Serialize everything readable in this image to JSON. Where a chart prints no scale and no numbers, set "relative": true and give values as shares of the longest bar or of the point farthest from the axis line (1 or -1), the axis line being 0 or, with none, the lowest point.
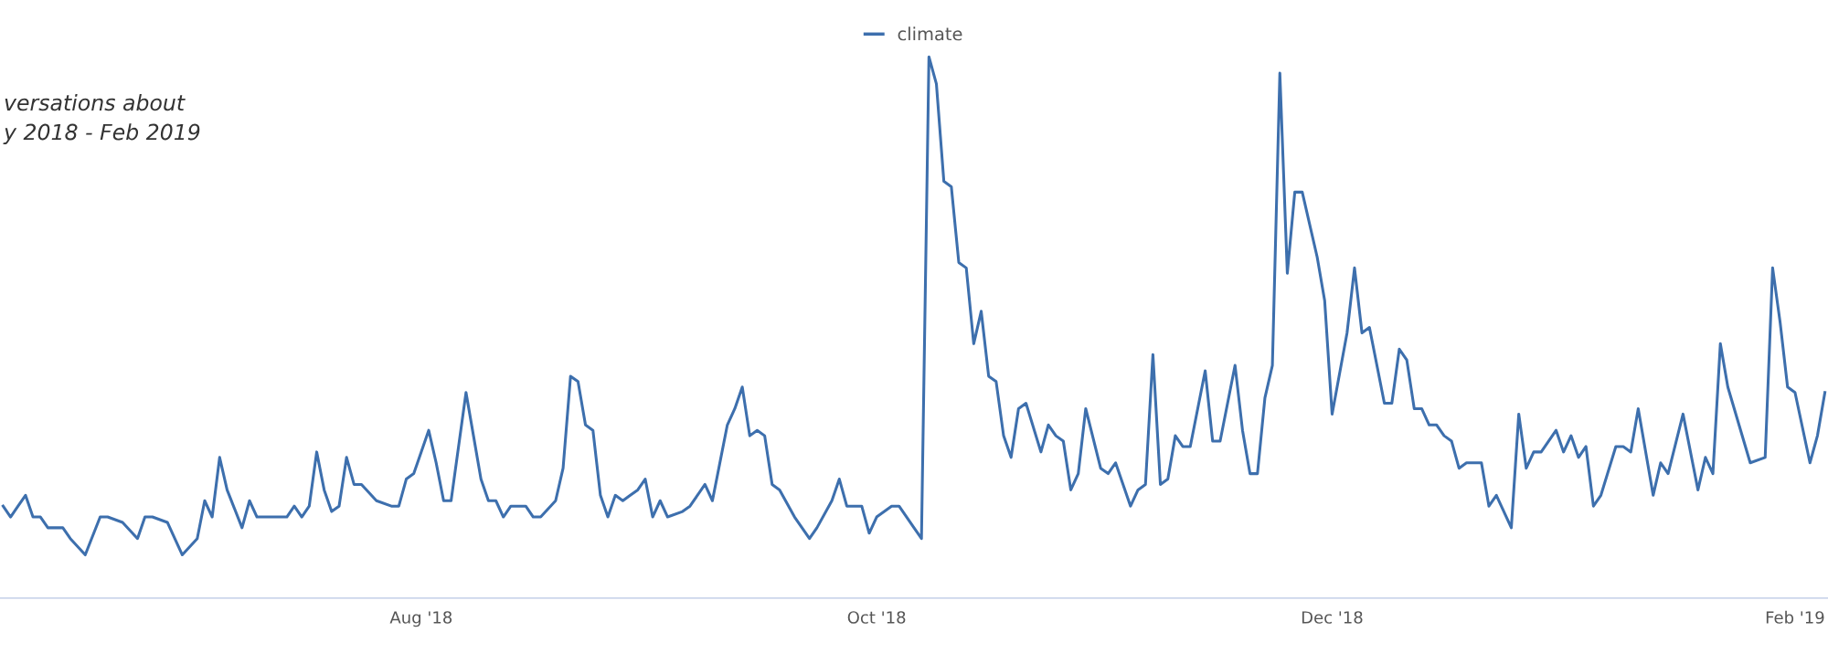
{
  "chart_data": {
    "type": "line",
    "relative": true,
    "legend": "top",
    "grid": false,
    "marker": "none",
    "line_style": "solid",
    "annotations": [
      "versations about",
      "y 2018 - Feb 2019"
    ],
    "xlim": [
      "2018-06-05T14:00",
      "2019-02-05T10:00"
    ],
    "xticks": [
      {
        "value": "2018-08-01",
        "label": "Aug '18"
      },
      {
        "value": "2018-10-01",
        "label": "Oct '18"
      },
      {
        "value": "2018-12-01",
        "label": "Dec '18"
      },
      {
        "value": "2019-02-01",
        "label": "Feb '19"
      }
    ],
    "x": [
      "2018-06-06",
      "2018-06-07",
      "2018-06-08",
      "2018-06-09",
      "2018-06-10",
      "2018-06-11",
      "2018-06-12",
      "2018-06-14",
      "2018-06-15",
      "2018-06-17",
      "2018-06-19",
      "2018-06-20",
      "2018-06-22",
      "2018-06-24",
      "2018-06-25",
      "2018-06-26",
      "2018-06-28",
      "2018-06-30",
      "2018-07-02",
      "2018-07-03",
      "2018-07-04",
      "2018-07-05",
      "2018-07-06",
      "2018-07-08",
      "2018-07-09",
      "2018-07-10",
      "2018-07-12",
      "2018-07-14",
      "2018-07-15",
      "2018-07-16",
      "2018-07-17",
      "2018-07-18",
      "2018-07-19",
      "2018-07-20",
      "2018-07-21",
      "2018-07-22",
      "2018-07-23",
      "2018-07-24",
      "2018-07-26",
      "2018-07-28",
      "2018-07-29",
      "2018-07-30",
      "2018-07-31",
      "2018-08-02",
      "2018-08-03",
      "2018-08-04",
      "2018-08-05",
      "2018-08-07",
      "2018-08-08",
      "2018-08-09",
      "2018-08-10",
      "2018-08-11",
      "2018-08-12",
      "2018-08-13",
      "2018-08-15",
      "2018-08-16",
      "2018-08-17",
      "2018-08-19",
      "2018-08-20",
      "2018-08-21",
      "2018-08-22",
      "2018-08-23",
      "2018-08-24",
      "2018-08-25",
      "2018-08-26",
      "2018-08-27",
      "2018-08-28",
      "2018-08-29",
      "2018-08-30",
      "2018-08-31",
      "2018-09-01",
      "2018-09-02",
      "2018-09-03",
      "2018-09-05",
      "2018-09-06",
      "2018-09-08",
      "2018-09-09",
      "2018-09-11",
      "2018-09-12",
      "2018-09-13",
      "2018-09-14",
      "2018-09-15",
      "2018-09-16",
      "2018-09-17",
      "2018-09-18",
      "2018-09-20",
      "2018-09-22",
      "2018-09-23",
      "2018-09-25",
      "2018-09-26",
      "2018-09-27",
      "2018-09-29",
      "2018-09-30",
      "2018-10-01",
      "2018-10-03",
      "2018-10-04",
      "2018-10-06",
      "2018-10-07",
      "2018-10-08",
      "2018-10-09",
      "2018-10-10",
      "2018-10-11",
      "2018-10-12",
      "2018-10-13",
      "2018-10-14",
      "2018-10-15",
      "2018-10-16",
      "2018-10-17",
      "2018-10-18",
      "2018-10-19",
      "2018-10-20",
      "2018-10-21",
      "2018-10-23",
      "2018-10-24",
      "2018-10-25",
      "2018-10-26",
      "2018-10-27",
      "2018-10-28",
      "2018-10-29",
      "2018-10-31",
      "2018-11-01",
      "2018-11-02",
      "2018-11-04",
      "2018-11-05",
      "2018-11-06",
      "2018-11-07",
      "2018-11-08",
      "2018-11-09",
      "2018-11-10",
      "2018-11-11",
      "2018-11-12",
      "2018-11-14",
      "2018-11-15",
      "2018-11-16",
      "2018-11-18",
      "2018-11-19",
      "2018-11-20",
      "2018-11-21",
      "2018-11-22",
      "2018-11-23",
      "2018-11-24",
      "2018-11-25",
      "2018-11-26",
      "2018-11-27",
      "2018-11-29",
      "2018-11-30",
      "2018-12-01",
      "2018-12-03",
      "2018-12-04",
      "2018-12-05",
      "2018-12-06",
      "2018-12-08",
      "2018-12-09",
      "2018-12-10",
      "2018-12-11",
      "2018-12-12",
      "2018-12-13",
      "2018-12-14",
      "2018-12-15",
      "2018-12-16",
      "2018-12-17",
      "2018-12-18",
      "2018-12-19",
      "2018-12-21",
      "2018-12-22",
      "2018-12-23",
      "2018-12-25",
      "2018-12-26",
      "2018-12-27",
      "2018-12-28",
      "2018-12-29",
      "2018-12-31",
      "2019-01-01",
      "2019-01-02",
      "2019-01-03",
      "2019-01-04",
      "2019-01-05",
      "2019-01-06",
      "2019-01-08",
      "2019-01-09",
      "2019-01-10",
      "2019-01-11",
      "2019-01-13",
      "2019-01-14",
      "2019-01-15",
      "2019-01-17",
      "2019-01-19",
      "2019-01-20",
      "2019-01-21",
      "2019-01-22",
      "2019-01-23",
      "2019-01-26",
      "2019-01-28",
      "2019-01-29",
      "2019-01-30",
      "2019-01-31",
      "2019-02-01",
      "2019-02-03",
      "2019-02-04",
      "2019-02-05"
    ],
    "series": [
      {
        "name": "climate",
        "color": "#3d6fad",
        "values": [
          0.17,
          0.15,
          0.17,
          0.19,
          0.15,
          0.15,
          0.13,
          0.13,
          0.11,
          0.08,
          0.15,
          0.15,
          0.14,
          0.11,
          0.15,
          0.15,
          0.14,
          0.08,
          0.11,
          0.18,
          0.15,
          0.26,
          0.2,
          0.13,
          0.18,
          0.15,
          0.15,
          0.15,
          0.17,
          0.15,
          0.17,
          0.27,
          0.2,
          0.16,
          0.17,
          0.26,
          0.21,
          0.21,
          0.18,
          0.17,
          0.17,
          0.22,
          0.23,
          0.31,
          0.25,
          0.18,
          0.18,
          0.38,
          0.3,
          0.22,
          0.18,
          0.18,
          0.15,
          0.17,
          0.17,
          0.15,
          0.15,
          0.18,
          0.24,
          0.41,
          0.4,
          0.32,
          0.31,
          0.19,
          0.15,
          0.19,
          0.18,
          0.19,
          0.2,
          0.22,
          0.15,
          0.18,
          0.15,
          0.16,
          0.17,
          0.21,
          0.18,
          0.32,
          0.35,
          0.39,
          0.3,
          0.31,
          0.3,
          0.21,
          0.2,
          0.15,
          0.11,
          0.13,
          0.18,
          0.22,
          0.17,
          0.17,
          0.12,
          0.15,
          0.17,
          0.17,
          0.13,
          0.11,
          1.0,
          0.95,
          0.77,
          0.76,
          0.62,
          0.61,
          0.47,
          0.53,
          0.41,
          0.4,
          0.3,
          0.26,
          0.35,
          0.36,
          0.27,
          0.32,
          0.3,
          0.29,
          0.2,
          0.23,
          0.35,
          0.24,
          0.23,
          0.25,
          0.17,
          0.2,
          0.21,
          0.45,
          0.21,
          0.22,
          0.3,
          0.28,
          0.28,
          0.42,
          0.29,
          0.29,
          0.43,
          0.31,
          0.23,
          0.23,
          0.37,
          0.43,
          0.97,
          0.6,
          0.75,
          0.75,
          0.63,
          0.55,
          0.34,
          0.49,
          0.61,
          0.49,
          0.5,
          0.36,
          0.36,
          0.46,
          0.44,
          0.35,
          0.35,
          0.32,
          0.32,
          0.3,
          0.29,
          0.24,
          0.25,
          0.25,
          0.17,
          0.19,
          0.13,
          0.34,
          0.24,
          0.27,
          0.27,
          0.31,
          0.27,
          0.3,
          0.26,
          0.28,
          0.17,
          0.19,
          0.28,
          0.28,
          0.27,
          0.35,
          0.19,
          0.25,
          0.23,
          0.34,
          0.2,
          0.26,
          0.23,
          0.47,
          0.39,
          0.25,
          0.26,
          0.61,
          0.51,
          0.39,
          0.38,
          0.25,
          0.3,
          0.38
        ]
      }
    ]
  }
}
